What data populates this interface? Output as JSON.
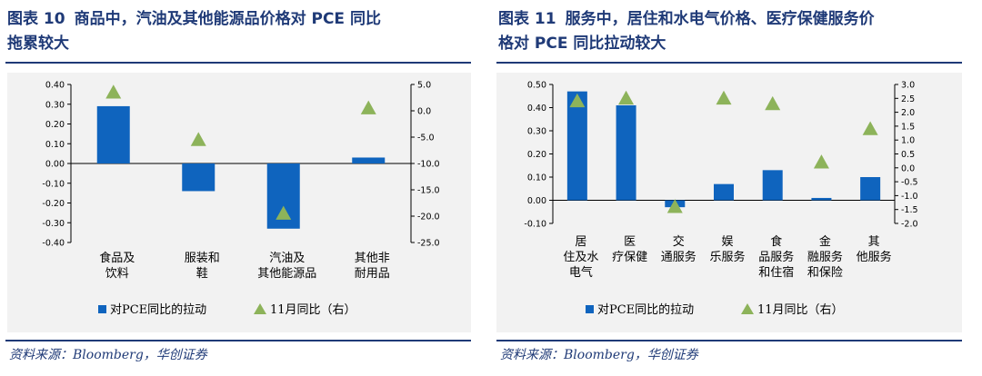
{
  "panels": [
    {
      "title_num": "图表 10",
      "title_line1": "商品中，汽油及其他能源品价格对 PCE 同比",
      "title_line2": "拖累较大",
      "source": "资料来源：Bloomberg，华创证券"
    },
    {
      "title_num": "图表 11",
      "title_line1": "服务中，居住和水电气价格、医疗保健服务价",
      "title_line2": "格对 PCE 同比拉动较大",
      "source": "资料来源：Bloomberg，华创证券"
    }
  ],
  "colors": {
    "bar": "#0f64be",
    "triangle": "#8db35a",
    "title": "#1f3a77",
    "plot_bg": "#f2f2f2"
  },
  "chart_data": [
    {
      "type": "bar",
      "categories": [
        [
          "食品及",
          "饮料"
        ],
        [
          "服装和",
          "鞋"
        ],
        [
          "汽油及",
          "其他能源品"
        ],
        [
          "其他非",
          "耐用品"
        ]
      ],
      "series": [
        {
          "name": "对PCE同比的拉动",
          "axis": "left",
          "type": "bar",
          "values": [
            0.29,
            -0.14,
            -0.33,
            0.03
          ]
        },
        {
          "name": "11月同比（右）",
          "axis": "right",
          "type": "marker",
          "marker": "triangle",
          "values": [
            3.5,
            -5.5,
            -19.5,
            0.5
          ]
        }
      ],
      "ylim_left": [
        -0.4,
        0.4
      ],
      "yticks_left": [
        "0.40",
        "0.30",
        "0.20",
        "0.10",
        "0.00",
        "-0.10",
        "-0.20",
        "-0.30",
        "-0.40"
      ],
      "ylim_right": [
        -25.0,
        5.0
      ],
      "yticks_right": [
        "5.0",
        "0.0",
        "-5.0",
        "-10.0",
        "-15.0",
        "-20.0",
        "-25.0"
      ],
      "legend_position": "bottom"
    },
    {
      "type": "bar",
      "categories": [
        [
          "居",
          "住及水",
          "电气"
        ],
        [
          "医",
          "疗保健"
        ],
        [
          "交",
          "通服务"
        ],
        [
          "娱",
          "乐服务"
        ],
        [
          "食",
          "品服务",
          "和住宿"
        ],
        [
          "金",
          "融服务",
          "和保险"
        ],
        [
          "其",
          "他服务"
        ]
      ],
      "series": [
        {
          "name": "对PCE同比的拉动",
          "axis": "left",
          "type": "bar",
          "values": [
            0.47,
            0.41,
            -0.03,
            0.07,
            0.13,
            0.01,
            0.1
          ]
        },
        {
          "name": "11月同比（右）",
          "axis": "right",
          "type": "marker",
          "marker": "triangle",
          "values": [
            2.4,
            2.5,
            -1.4,
            2.5,
            2.3,
            0.2,
            1.4
          ]
        }
      ],
      "ylim_left": [
        -0.1,
        0.5
      ],
      "yticks_left": [
        "0.50",
        "0.40",
        "0.30",
        "0.20",
        "0.10",
        "0.00",
        "-0.10"
      ],
      "ylim_right": [
        -2.0,
        3.0
      ],
      "yticks_right": [
        "3.0",
        "2.5",
        "2.0",
        "1.5",
        "1.0",
        "0.5",
        "0.0",
        "-0.5",
        "-1.0",
        "-1.5",
        "-2.0"
      ],
      "legend_position": "bottom"
    }
  ]
}
